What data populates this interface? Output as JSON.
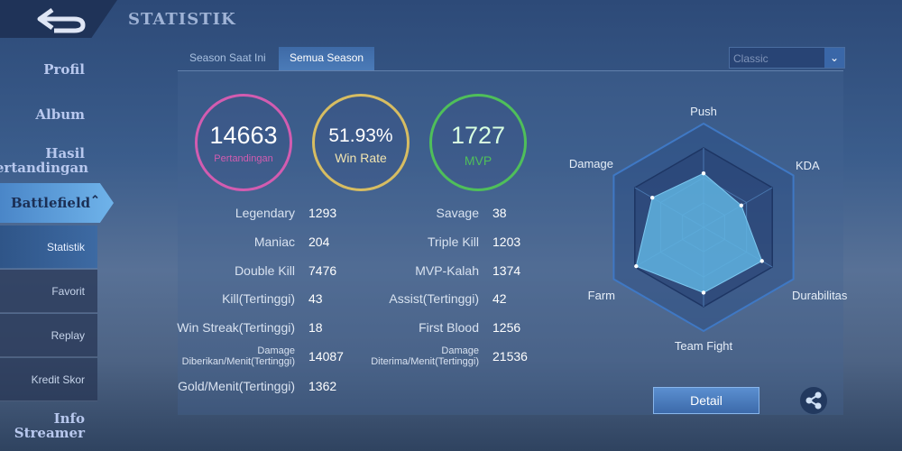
{
  "header": {
    "title": "STATISTIK",
    "back_icon": "back-arrow-icon"
  },
  "sidebar": {
    "items": [
      {
        "label": "Profil"
      },
      {
        "label": "Album"
      },
      {
        "label": "Hasil Pertandingan"
      },
      {
        "label": "Battlefield"
      },
      {
        "label": "Info Streamer"
      }
    ],
    "sub_items": [
      {
        "label": "Statistik",
        "active": true
      },
      {
        "label": "Favorit"
      },
      {
        "label": "Replay"
      },
      {
        "label": "Kredit Skor"
      }
    ]
  },
  "tabs": [
    {
      "label": "Season Saat Ini"
    },
    {
      "label": "Semua Season",
      "active": true
    }
  ],
  "mode_select": {
    "value": "Classic"
  },
  "summary": [
    {
      "value": "14663",
      "label": "Pertandingan",
      "color": "#d25cb0"
    },
    {
      "value": "51.93%",
      "label": "Win Rate",
      "color": "#d7bd62"
    },
    {
      "value": "1727",
      "label": "MVP",
      "color": "#4fbf5a"
    }
  ],
  "stats_left": [
    {
      "label": "Legendary",
      "value": "1293"
    },
    {
      "label": "Maniac",
      "value": "204"
    },
    {
      "label": "Double Kill",
      "value": "7476"
    },
    {
      "label": "Kill(Tertinggi)",
      "value": "43"
    },
    {
      "label": "Win Streak(Tertinggi)",
      "value": "18"
    },
    {
      "label": "Damage Diberikan/Menit(Tertinggi)",
      "value": "14087"
    },
    {
      "label": "Gold/Menit(Tertinggi)",
      "value": "1362"
    }
  ],
  "stats_right": [
    {
      "label": "Savage",
      "value": "38"
    },
    {
      "label": "Triple Kill",
      "value": "1203"
    },
    {
      "label": "MVP-Kalah",
      "value": "1374"
    },
    {
      "label": "Assist(Tertinggi)",
      "value": "42"
    },
    {
      "label": "First Blood",
      "value": "1256"
    },
    {
      "label": "Damage Diterima/Menit(Tertinggi)",
      "value": "21536"
    }
  ],
  "radar": {
    "axes": [
      "Push",
      "KDA",
      "Durabilitas",
      "Team Fight",
      "Farm",
      "Damage"
    ],
    "values": [
      0.52,
      0.42,
      0.65,
      0.63,
      0.75,
      0.57
    ],
    "fill": "#5fb3e0"
  },
  "detail_label": "Detail",
  "share_icon": "share-icon"
}
